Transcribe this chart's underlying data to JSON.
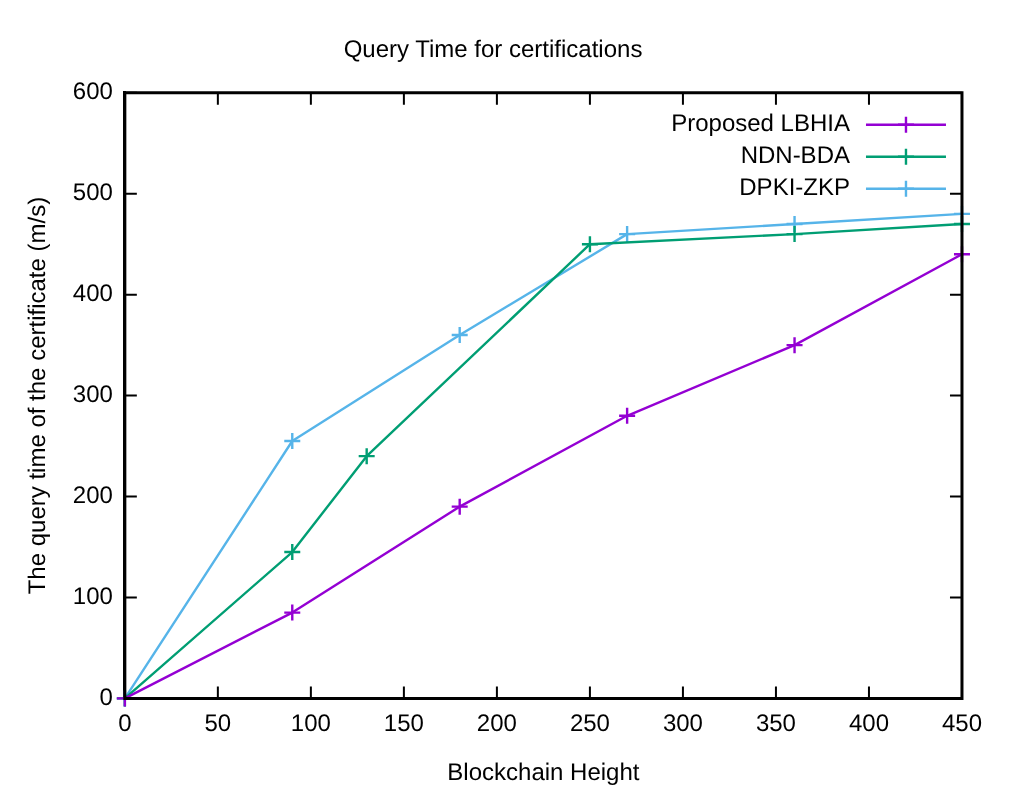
{
  "chart_data": {
    "type": "line",
    "title": "Query Time for certifications",
    "xlabel": "Blockchain Height",
    "ylabel": "The query time of the certificate (m/s)",
    "xlim": [
      0,
      450
    ],
    "xticks": [
      0,
      50,
      100,
      150,
      200,
      250,
      300,
      350,
      400,
      450
    ],
    "ylim": [
      0,
      600
    ],
    "yticks": [
      0,
      100,
      200,
      300,
      400,
      500,
      600
    ],
    "grid": false,
    "legend": "top right",
    "line_style": "solid",
    "series": [
      {
        "name": "Proposed LBHIA",
        "color": "#9400d3",
        "marker": "cross",
        "x": [
          0,
          90,
          180,
          270,
          360,
          450
        ],
        "values": [
          0,
          85,
          190,
          280,
          350,
          440
        ]
      },
      {
        "name": "NDN-BDA",
        "color": "#009e73",
        "marker": "cross",
        "x": [
          0,
          90,
          130,
          250,
          360,
          450
        ],
        "values": [
          0,
          145,
          240,
          450,
          460,
          470
        ]
      },
      {
        "name": "DPKI-ZKP",
        "color": "#56b4e9",
        "marker": "cross",
        "x": [
          0,
          90,
          180,
          270,
          360,
          450
        ],
        "values": [
          0,
          255,
          360,
          460,
          470,
          480
        ]
      }
    ]
  }
}
